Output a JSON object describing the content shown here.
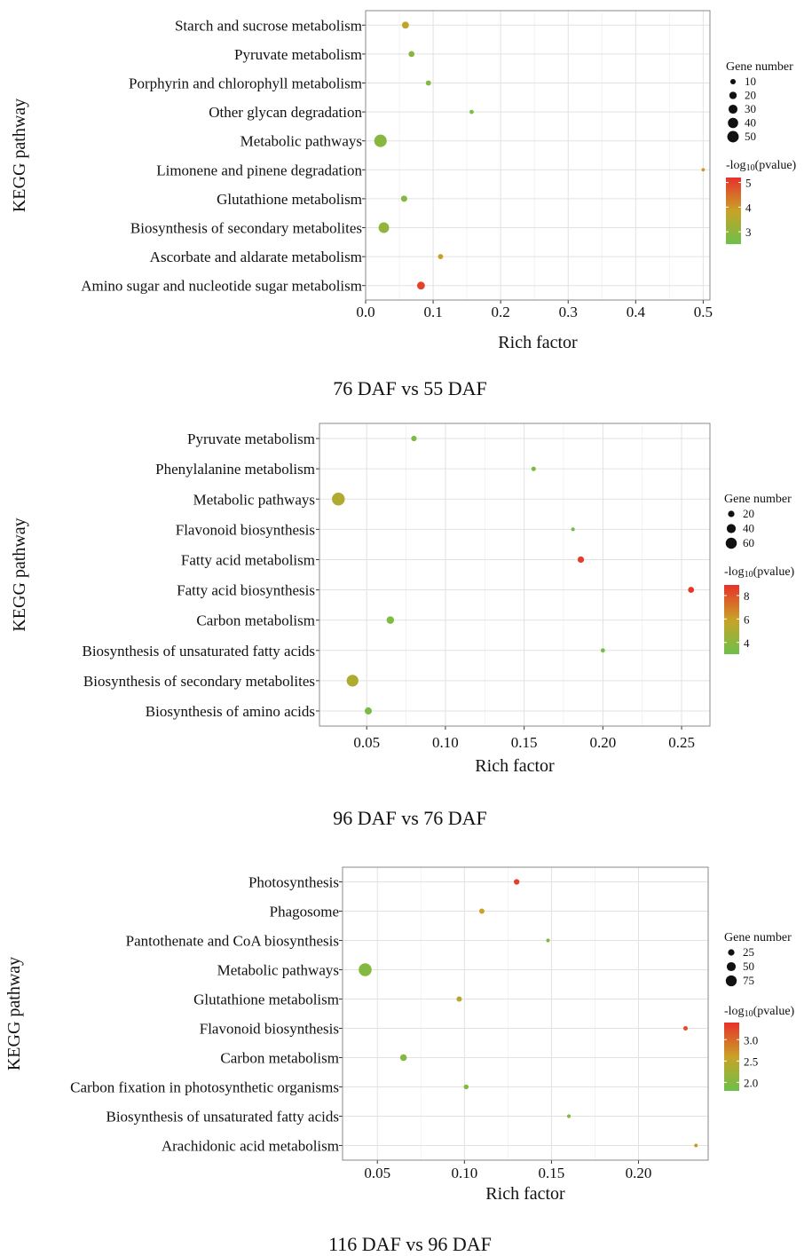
{
  "colors": {
    "low": "#6cc04a",
    "mid": "#c9a227",
    "high": "#e8312b"
  },
  "chart_data": [
    {
      "type": "scatter",
      "caption": "76 DAF vs 55 DAF",
      "xlabel": "Rich factor",
      "ylabel": "KEGG pathway",
      "xlim": [
        0.0,
        0.51
      ],
      "xticks": [
        0.0,
        0.1,
        0.2,
        0.3,
        0.4,
        0.5
      ],
      "xtick_labels": [
        "0.0",
        "0.1",
        "0.2",
        "0.3",
        "0.4",
        "0.5"
      ],
      "grid": true,
      "categories": [
        "Starch and sucrose metabolism",
        "Pyruvate metabolism",
        "Porphyrin and chlorophyll metabolism",
        "Other glycan degradation",
        "Metabolic pathways",
        "Limonene and pinene degradation",
        "Glutathione metabolism",
        "Biosynthesis of secondary metabolites",
        "Ascorbate and aldarate metabolism",
        "Amino sugar and nucleotide sugar metabolism"
      ],
      "points": [
        {
          "category": "Starch and sucrose metabolism",
          "rich_factor": 0.059,
          "gene_number": 14,
          "neg_log10_pvalue": 3.7
        },
        {
          "category": "Pyruvate metabolism",
          "rich_factor": 0.068,
          "gene_number": 10,
          "neg_log10_pvalue": 2.9
        },
        {
          "category": "Porphyrin and chlorophyll metabolism",
          "rich_factor": 0.093,
          "gene_number": 7,
          "neg_log10_pvalue": 2.8
        },
        {
          "category": "Other glycan degradation",
          "rich_factor": 0.157,
          "gene_number": 4,
          "neg_log10_pvalue": 2.7
        },
        {
          "category": "Metabolic pathways",
          "rich_factor": 0.022,
          "gene_number": 48,
          "neg_log10_pvalue": 2.9
        },
        {
          "category": "Limonene and pinene degradation",
          "rich_factor": 0.5,
          "gene_number": 2,
          "neg_log10_pvalue": 4.0
        },
        {
          "category": "Glutathione metabolism",
          "rich_factor": 0.057,
          "gene_number": 11,
          "neg_log10_pvalue": 2.8
        },
        {
          "category": "Biosynthesis of secondary metabolites",
          "rich_factor": 0.027,
          "gene_number": 34,
          "neg_log10_pvalue": 3.1
        },
        {
          "category": "Ascorbate and aldarate metabolism",
          "rich_factor": 0.111,
          "gene_number": 7,
          "neg_log10_pvalue": 3.9
        },
        {
          "category": "Amino sugar and nucleotide sugar metabolism",
          "rich_factor": 0.082,
          "gene_number": 18,
          "neg_log10_pvalue": 5.0
        }
      ],
      "legend": {
        "size_title": "Gene number",
        "size_values": [
          10,
          20,
          30,
          40,
          50
        ],
        "size_labels": [
          "10",
          "20",
          "30",
          "40",
          "50"
        ],
        "color_title_prefix": "-log",
        "color_title_sub": "10",
        "color_title_suffix": "(pvalue)",
        "color_range": [
          2.5,
          5.2
        ],
        "color_ticks": [
          3,
          4,
          5
        ],
        "color_tick_labels": [
          "3",
          "4",
          "5"
        ],
        "position": "right"
      },
      "size_range": [
        1,
        55
      ]
    },
    {
      "type": "scatter",
      "caption": "96 DAF vs 76 DAF",
      "xlabel": "Rich factor",
      "ylabel": "KEGG pathway",
      "xlim": [
        0.02,
        0.268
      ],
      "xticks": [
        0.05,
        0.1,
        0.15,
        0.2,
        0.25
      ],
      "xtick_labels": [
        "0.05",
        "0.10",
        "0.15",
        "0.20",
        "0.25"
      ],
      "grid": true,
      "categories": [
        "Pyruvate metabolism",
        "Phenylalanine metabolism",
        "Metabolic pathways",
        "Flavonoid biosynthesis",
        "Fatty acid metabolism",
        "Fatty acid biosynthesis",
        "Carbon metabolism",
        "Biosynthesis of unsaturated fatty acids",
        "Biosynthesis of secondary metabolites",
        "Biosynthesis of amino acids"
      ],
      "points": [
        {
          "category": "Pyruvate metabolism",
          "rich_factor": 0.08,
          "gene_number": 12,
          "neg_log10_pvalue": 3.5
        },
        {
          "category": "Phenylalanine metabolism",
          "rich_factor": 0.156,
          "gene_number": 8,
          "neg_log10_pvalue": 3.3
        },
        {
          "category": "Metabolic pathways",
          "rich_factor": 0.032,
          "gene_number": 65,
          "neg_log10_pvalue": 5.2
        },
        {
          "category": "Flavonoid biosynthesis",
          "rich_factor": 0.181,
          "gene_number": 5,
          "neg_log10_pvalue": 3.3
        },
        {
          "category": "Fatty acid metabolism",
          "rich_factor": 0.186,
          "gene_number": 16,
          "neg_log10_pvalue": 8.6
        },
        {
          "category": "Fatty acid biosynthesis",
          "rich_factor": 0.256,
          "gene_number": 14,
          "neg_log10_pvalue": 8.8
        },
        {
          "category": "Carbon metabolism",
          "rich_factor": 0.065,
          "gene_number": 22,
          "neg_log10_pvalue": 3.6
        },
        {
          "category": "Biosynthesis of unsaturated fatty acids",
          "rich_factor": 0.2,
          "gene_number": 7,
          "neg_log10_pvalue": 3.3
        },
        {
          "category": "Biosynthesis of secondary metabolites",
          "rich_factor": 0.041,
          "gene_number": 55,
          "neg_log10_pvalue": 5.1
        },
        {
          "category": "Biosynthesis of amino acids",
          "rich_factor": 0.051,
          "gene_number": 20,
          "neg_log10_pvalue": 3.4
        }
      ],
      "legend": {
        "size_title": "Gene number",
        "size_values": [
          20,
          40,
          60
        ],
        "size_labels": [
          "20",
          "40",
          "60"
        ],
        "color_title_prefix": "-log",
        "color_title_sub": "10",
        "color_title_suffix": "(pvalue)",
        "color_range": [
          3.0,
          8.9
        ],
        "color_ticks": [
          4,
          6,
          8
        ],
        "color_tick_labels": [
          "4",
          "6",
          "8"
        ],
        "position": "right"
      },
      "size_range": [
        3,
        70
      ]
    },
    {
      "type": "scatter",
      "caption": "116 DAF vs 96 DAF",
      "xlabel": "Rich factor",
      "ylabel": "KEGG pathway",
      "xlim": [
        0.03,
        0.24
      ],
      "xticks": [
        0.05,
        0.1,
        0.15,
        0.2
      ],
      "xtick_labels": [
        "0.05",
        "0.10",
        "0.15",
        "0.20"
      ],
      "grid": true,
      "categories": [
        "Photosynthesis",
        "Phagosome",
        "Pantothenate and CoA biosynthesis",
        "Metabolic pathways",
        "Glutathione metabolism",
        "Flavonoid biosynthesis",
        "Carbon metabolism",
        "Carbon fixation in photosynthetic organisms",
        "Biosynthesis of unsaturated fatty acids",
        "Arachidonic acid metabolism"
      ],
      "points": [
        {
          "category": "Photosynthesis",
          "rich_factor": 0.13,
          "gene_number": 15,
          "neg_log10_pvalue": 3.3
        },
        {
          "category": "Phagosome",
          "rich_factor": 0.11,
          "gene_number": 13,
          "neg_log10_pvalue": 2.6
        },
        {
          "category": "Pantothenate and CoA biosynthesis",
          "rich_factor": 0.148,
          "gene_number": 6,
          "neg_log10_pvalue": 2.0
        },
        {
          "category": "Metabolic pathways",
          "rich_factor": 0.043,
          "gene_number": 85,
          "neg_log10_pvalue": 2.0
        },
        {
          "category": "Glutathione metabolism",
          "rich_factor": 0.097,
          "gene_number": 14,
          "neg_log10_pvalue": 2.4
        },
        {
          "category": "Flavonoid biosynthesis",
          "rich_factor": 0.227,
          "gene_number": 9,
          "neg_log10_pvalue": 3.2
        },
        {
          "category": "Carbon metabolism",
          "rich_factor": 0.065,
          "gene_number": 22,
          "neg_log10_pvalue": 2.0
        },
        {
          "category": "Carbon fixation in photosynthetic organisms",
          "rich_factor": 0.101,
          "gene_number": 11,
          "neg_log10_pvalue": 2.0
        },
        {
          "category": "Biosynthesis of unsaturated fatty acids",
          "rich_factor": 0.16,
          "gene_number": 6,
          "neg_log10_pvalue": 2.0
        },
        {
          "category": "Arachidonic acid metabolism",
          "rich_factor": 0.233,
          "gene_number": 5,
          "neg_log10_pvalue": 2.7
        }
      ],
      "legend": {
        "size_title": "Gene number",
        "size_values": [
          25,
          50,
          75
        ],
        "size_labels": [
          "25",
          "50",
          "75"
        ],
        "color_title_prefix": "-log",
        "color_title_sub": "10",
        "color_title_suffix": "(pvalue)",
        "color_range": [
          1.8,
          3.4
        ],
        "color_ticks": [
          2.0,
          2.5,
          3.0
        ],
        "color_tick_labels": [
          "2.0",
          "2.5",
          "3.0"
        ],
        "position": "right"
      },
      "size_range": [
        3,
        90
      ]
    }
  ]
}
